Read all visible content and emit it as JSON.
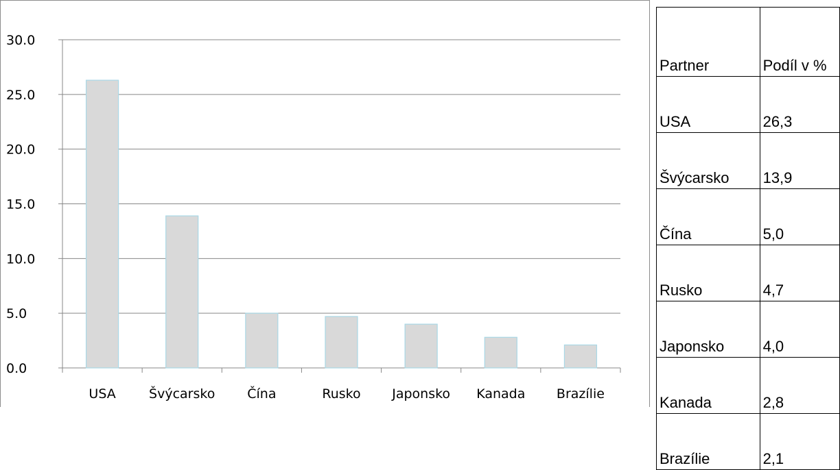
{
  "chart_data": {
    "type": "bar",
    "categories": [
      "USA",
      "Švýcarsko",
      "Čína",
      "Rusko",
      "Japonsko",
      "Kanada",
      "Brazílie"
    ],
    "values": [
      26.3,
      13.9,
      5.0,
      4.7,
      4.0,
      2.8,
      2.1
    ],
    "title": "",
    "xlabel": "",
    "ylabel": "",
    "ylim": [
      0,
      30
    ],
    "yticks": [
      "0.0",
      "5.0",
      "10.0",
      "15.0",
      "20.0",
      "25.0",
      "30.0"
    ],
    "grid": true,
    "legend": "none",
    "colors": {
      "bar_fill": "#d9d9d9",
      "bar_stroke": "#a9d8e6",
      "grid": "#878787",
      "axis": "#878787"
    }
  },
  "table": {
    "headers": [
      "Partner",
      "Podíl v %"
    ],
    "rows": [
      [
        "USA",
        "26,3"
      ],
      [
        "Švýcarsko",
        "13,9"
      ],
      [
        "Čína",
        "5,0"
      ],
      [
        "Rusko",
        "4,7"
      ],
      [
        "Japonsko",
        "4,0"
      ],
      [
        "Kanada",
        "2,8"
      ],
      [
        "Brazílie",
        "2,1"
      ]
    ]
  }
}
